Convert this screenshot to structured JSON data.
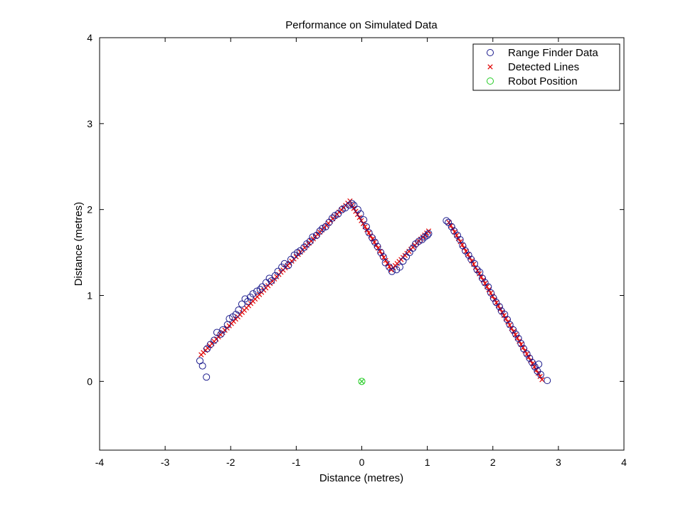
{
  "chart_data": {
    "type": "scatter",
    "title": "Performance on Simulated Data",
    "xlabel": "Distance (metres)",
    "ylabel": "Distance (metres)",
    "xlim": [
      -4,
      4
    ],
    "ylim": [
      -0.8,
      4
    ],
    "x_ticks": [
      -4,
      -3,
      -2,
      -1,
      0,
      1,
      2,
      3,
      4
    ],
    "y_ticks": [
      0,
      1,
      2,
      3,
      4
    ],
    "grid": false,
    "legend_position": "top-right",
    "series": [
      {
        "name": "Range Finder Data",
        "marker": "circle",
        "color": "#1a1a8c",
        "x": [
          -2.47,
          -2.43,
          -2.37,
          -2.36,
          -2.31,
          -2.25,
          -2.21,
          -2.15,
          -2.12,
          -2.05,
          -2.02,
          -1.97,
          -1.92,
          -1.88,
          -1.83,
          -1.78,
          -1.74,
          -1.7,
          -1.66,
          -1.6,
          -1.55,
          -1.52,
          -1.46,
          -1.41,
          -1.38,
          -1.32,
          -1.28,
          -1.22,
          -1.18,
          -1.12,
          -1.08,
          -1.03,
          -0.98,
          -0.94,
          -0.88,
          -0.84,
          -0.79,
          -0.75,
          -0.69,
          -0.64,
          -0.6,
          -0.55,
          -0.5,
          -0.45,
          -0.41,
          -0.36,
          -0.3,
          -0.25,
          -0.19,
          -0.15,
          -0.12,
          -0.06,
          -0.02,
          0.03,
          0.07,
          0.11,
          0.16,
          0.2,
          0.24,
          0.29,
          0.33,
          0.36,
          0.42,
          0.46,
          0.53,
          0.58,
          0.63,
          0.68,
          0.73,
          0.78,
          0.82,
          0.87,
          0.92,
          0.96,
          1.0,
          1.02,
          1.29,
          1.32,
          1.37,
          1.41,
          1.46,
          1.5,
          1.54,
          1.58,
          1.63,
          1.67,
          1.72,
          1.76,
          1.8,
          1.84,
          1.88,
          1.93,
          1.97,
          2.01,
          2.05,
          2.1,
          2.13,
          2.18,
          2.22,
          2.26,
          2.31,
          2.35,
          2.39,
          2.43,
          2.47,
          2.52,
          2.56,
          2.6,
          2.64,
          2.68,
          2.7,
          2.73,
          2.83
        ],
        "y": [
          0.24,
          0.18,
          0.05,
          0.38,
          0.43,
          0.48,
          0.57,
          0.55,
          0.6,
          0.66,
          0.73,
          0.75,
          0.78,
          0.83,
          0.9,
          0.96,
          0.93,
          0.98,
          1.02,
          1.05,
          1.07,
          1.1,
          1.15,
          1.2,
          1.17,
          1.23,
          1.28,
          1.33,
          1.37,
          1.35,
          1.42,
          1.47,
          1.5,
          1.52,
          1.56,
          1.6,
          1.63,
          1.68,
          1.7,
          1.75,
          1.78,
          1.8,
          1.85,
          1.9,
          1.93,
          1.95,
          2.0,
          2.02,
          2.05,
          2.07,
          2.05,
          2.0,
          1.95,
          1.88,
          1.8,
          1.73,
          1.67,
          1.62,
          1.57,
          1.5,
          1.45,
          1.38,
          1.33,
          1.28,
          1.3,
          1.33,
          1.4,
          1.45,
          1.5,
          1.55,
          1.6,
          1.63,
          1.65,
          1.68,
          1.7,
          1.72,
          1.87,
          1.85,
          1.8,
          1.75,
          1.7,
          1.65,
          1.58,
          1.52,
          1.47,
          1.42,
          1.37,
          1.3,
          1.27,
          1.2,
          1.15,
          1.1,
          1.03,
          0.97,
          0.92,
          0.87,
          0.82,
          0.78,
          0.72,
          0.66,
          0.6,
          0.55,
          0.5,
          0.44,
          0.38,
          0.32,
          0.27,
          0.22,
          0.17,
          0.12,
          0.2,
          0.08,
          0.01
        ]
      },
      {
        "name": "Detected Lines",
        "marker": "x",
        "color": "#e00000",
        "segments": [
          {
            "from": [
              -2.45,
              0.31
            ],
            "to": [
              -0.18,
              2.1
            ],
            "n": 70
          },
          {
            "from": [
              -0.15,
              2.05
            ],
            "to": [
              0.45,
              1.3
            ],
            "n": 22
          },
          {
            "from": [
              0.45,
              1.3
            ],
            "to": [
              1.02,
              1.75
            ],
            "n": 20
          },
          {
            "from": [
              1.33,
              1.85
            ],
            "to": [
              2.75,
              0.02
            ],
            "n": 50
          }
        ]
      },
      {
        "name": "Robot Position",
        "marker": "circle",
        "color": "#22cc22",
        "x": [
          0
        ],
        "y": [
          0
        ]
      }
    ]
  }
}
